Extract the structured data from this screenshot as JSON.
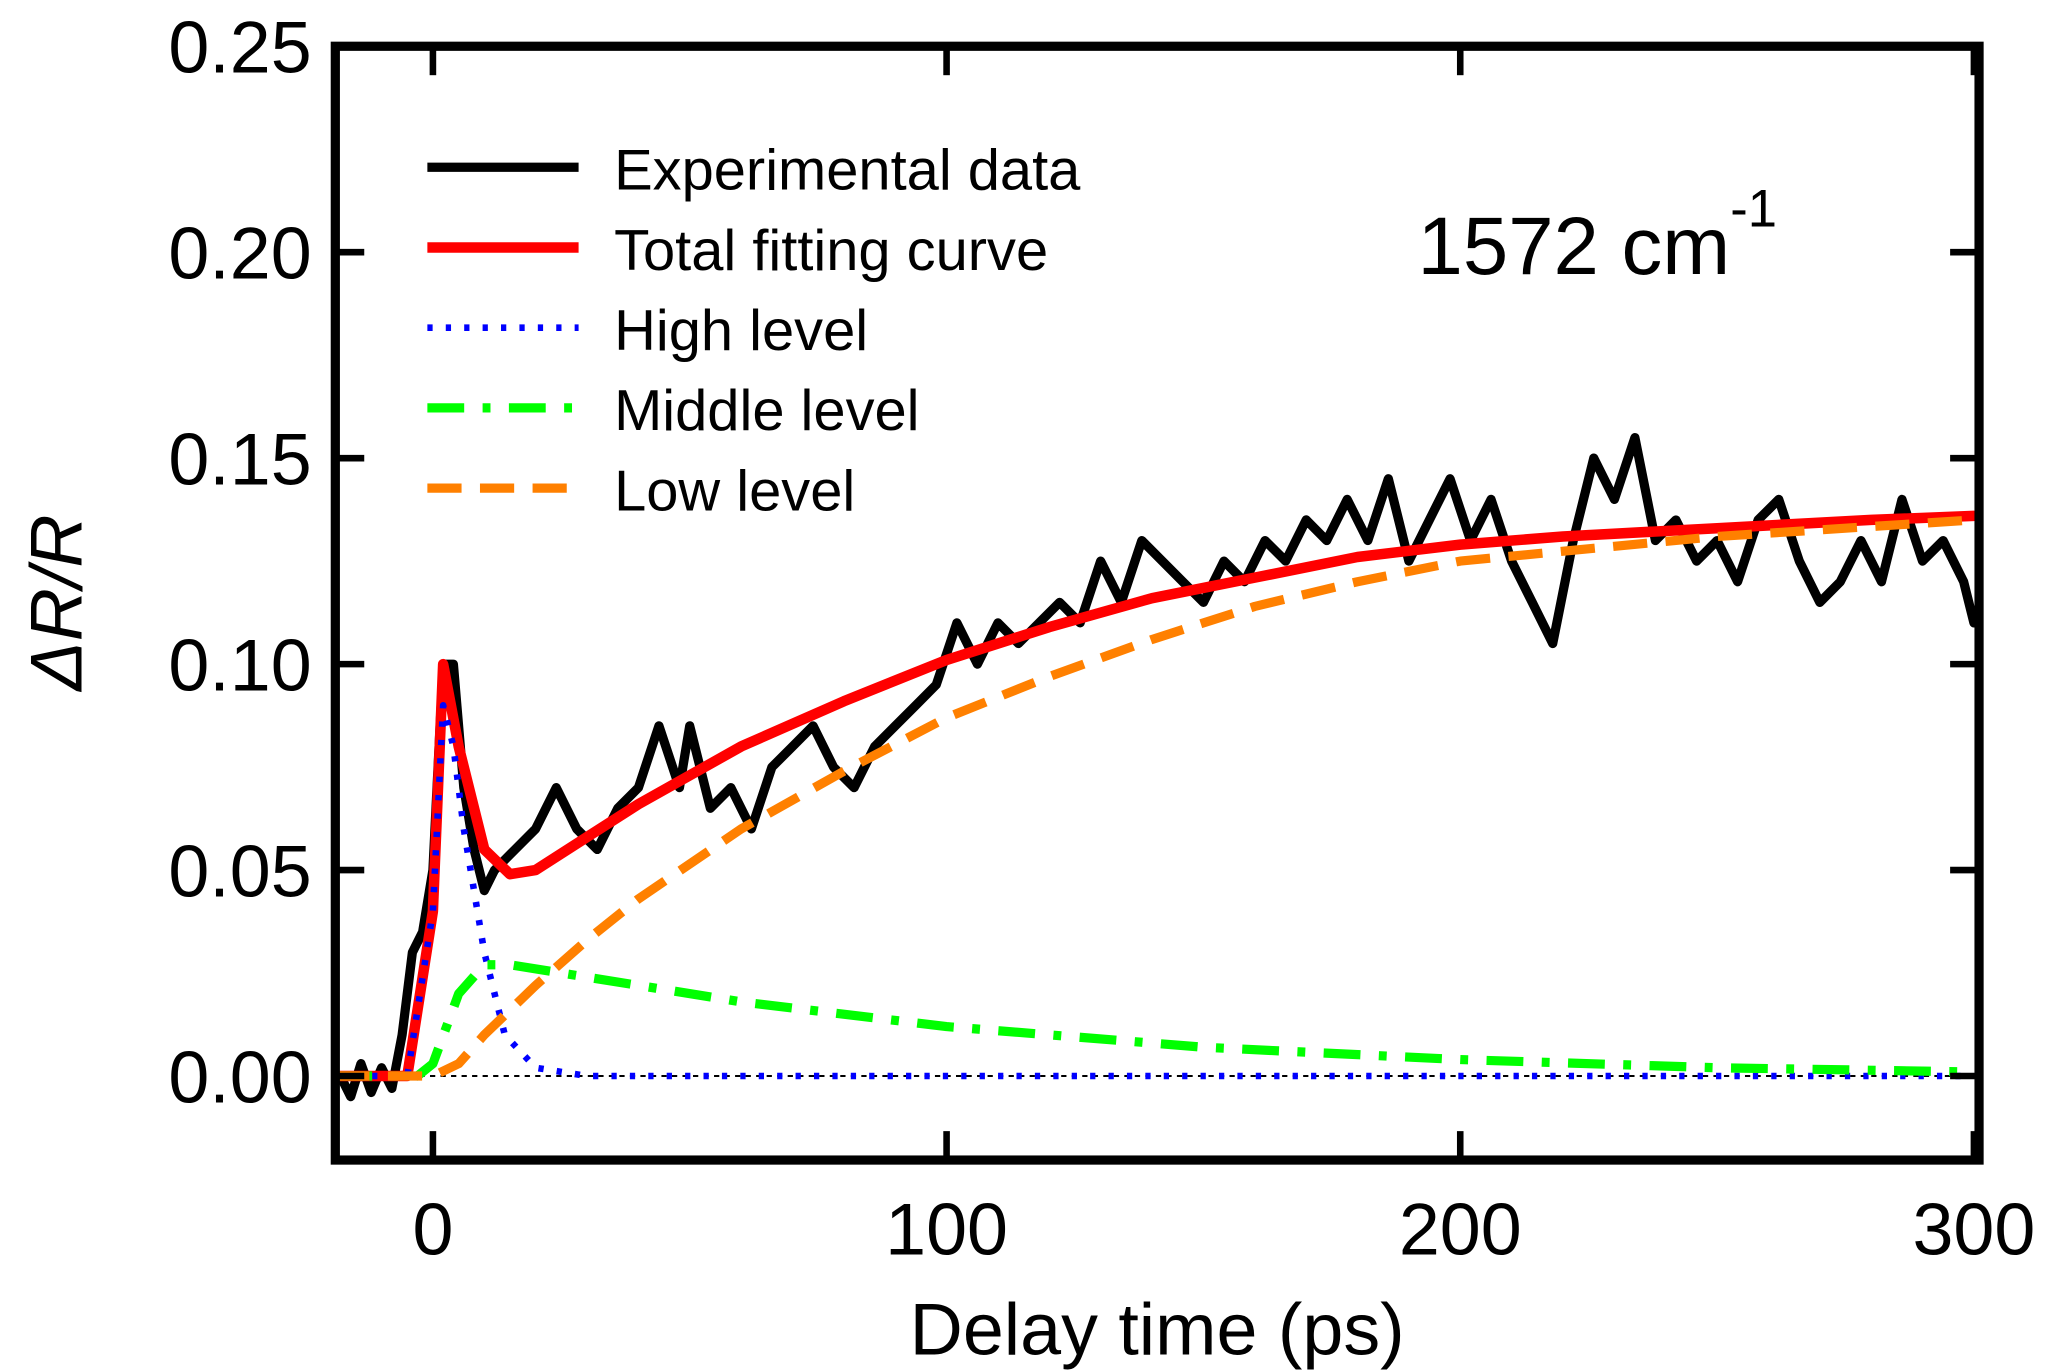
{
  "chart_data": {
    "type": "line",
    "xlabel": "Delay time (ps)",
    "ylabel": "ΔR/R",
    "annotation": {
      "text": "1572 cm",
      "superscript": "-1"
    },
    "xlim": [
      -19,
      301
    ],
    "ylim": [
      -0.0204,
      0.25
    ],
    "xticks": [
      0,
      100,
      200,
      300
    ],
    "yticks": [
      {
        "value": 0,
        "label": "0.00"
      },
      0.05,
      {
        "value": 0.1,
        "label": "0.10"
      },
      0.15,
      {
        "value": 0.2,
        "label": "0.20"
      },
      0.25
    ],
    "legend": "upper left",
    "grid": false,
    "series": [
      {
        "name": "Experimental data",
        "color": "#000000",
        "style": "solid",
        "width": 7,
        "x": [
          -18,
          -16,
          -14,
          -12,
          -10,
          -8,
          -6,
          -4,
          -2,
          0,
          2,
          4,
          6,
          8,
          10,
          12,
          16,
          20,
          24,
          28,
          32,
          36,
          40,
          44,
          48,
          50,
          54,
          58,
          62,
          66,
          70,
          74,
          78,
          82,
          86,
          90,
          94,
          98,
          102,
          106,
          110,
          114,
          118,
          122,
          126,
          130,
          134,
          138,
          142,
          146,
          150,
          154,
          158,
          162,
          166,
          170,
          174,
          178,
          182,
          186,
          190,
          194,
          198,
          202,
          206,
          210,
          214,
          218,
          222,
          226,
          230,
          234,
          238,
          242,
          246,
          250,
          254,
          258,
          262,
          266,
          270,
          274,
          278,
          282,
          286,
          290,
          294,
          298,
          300
        ],
        "values": [
          0.0,
          -0.005,
          0.003,
          -0.004,
          0.002,
          -0.003,
          0.01,
          0.03,
          0.035,
          0.05,
          0.1,
          0.1,
          0.07,
          0.055,
          0.045,
          0.05,
          0.055,
          0.06,
          0.07,
          0.06,
          0.055,
          0.065,
          0.07,
          0.085,
          0.07,
          0.085,
          0.065,
          0.07,
          0.06,
          0.075,
          0.08,
          0.085,
          0.075,
          0.07,
          0.08,
          0.085,
          0.09,
          0.095,
          0.11,
          0.1,
          0.11,
          0.105,
          0.11,
          0.115,
          0.11,
          0.125,
          0.115,
          0.13,
          0.125,
          0.12,
          0.115,
          0.125,
          0.12,
          0.13,
          0.125,
          0.135,
          0.13,
          0.14,
          0.13,
          0.145,
          0.125,
          0.135,
          0.145,
          0.13,
          0.14,
          0.125,
          0.115,
          0.105,
          0.13,
          0.15,
          0.14,
          0.155,
          0.13,
          0.135,
          0.125,
          0.13,
          0.12,
          0.135,
          0.14,
          0.125,
          0.115,
          0.12,
          0.13,
          0.12,
          0.14,
          0.125,
          0.13,
          0.12,
          0.11
        ]
      },
      {
        "name": "Total fitting curve",
        "color": "#ff0000",
        "style": "solid",
        "width": 8,
        "x": [
          -19,
          -5,
          0,
          2,
          5,
          10,
          15,
          20,
          30,
          40,
          60,
          80,
          100,
          120,
          140,
          160,
          180,
          200,
          220,
          250,
          280,
          300
        ],
        "values": [
          0,
          0,
          0.04,
          0.1,
          0.08,
          0.055,
          0.049,
          0.05,
          0.058,
          0.066,
          0.08,
          0.091,
          0.101,
          0.109,
          0.116,
          0.121,
          0.126,
          0.129,
          0.131,
          0.133,
          0.135,
          0.136
        ]
      },
      {
        "name": "High level",
        "color": "#0000ff",
        "style": "dotted",
        "width": 5,
        "x": [
          -19,
          -5,
          0,
          2,
          4,
          6,
          10,
          14,
          20,
          30,
          300
        ],
        "values": [
          0,
          0,
          0.04,
          0.09,
          0.08,
          0.06,
          0.03,
          0.01,
          0.002,
          0,
          0
        ]
      },
      {
        "name": "Middle level",
        "color": "#00ff00",
        "style": "dashdot",
        "width": 7,
        "x": [
          -19,
          -3,
          0,
          5,
          10,
          15,
          30,
          60,
          100,
          150,
          200,
          250,
          300
        ],
        "values": [
          0,
          0,
          0.003,
          0.02,
          0.027,
          0.027,
          0.024,
          0.018,
          0.012,
          0.007,
          0.004,
          0.002,
          0.001
        ]
      },
      {
        "name": "Low level",
        "color": "#ff8000",
        "style": "dashed",
        "width": 7,
        "x": [
          -19,
          0,
          5,
          10,
          20,
          30,
          40,
          60,
          80,
          100,
          120,
          140,
          160,
          180,
          200,
          250,
          300
        ],
        "values": [
          0,
          0,
          0.003,
          0.01,
          0.022,
          0.033,
          0.043,
          0.06,
          0.074,
          0.087,
          0.097,
          0.106,
          0.114,
          0.12,
          0.125,
          0.131,
          0.135
        ]
      }
    ]
  }
}
